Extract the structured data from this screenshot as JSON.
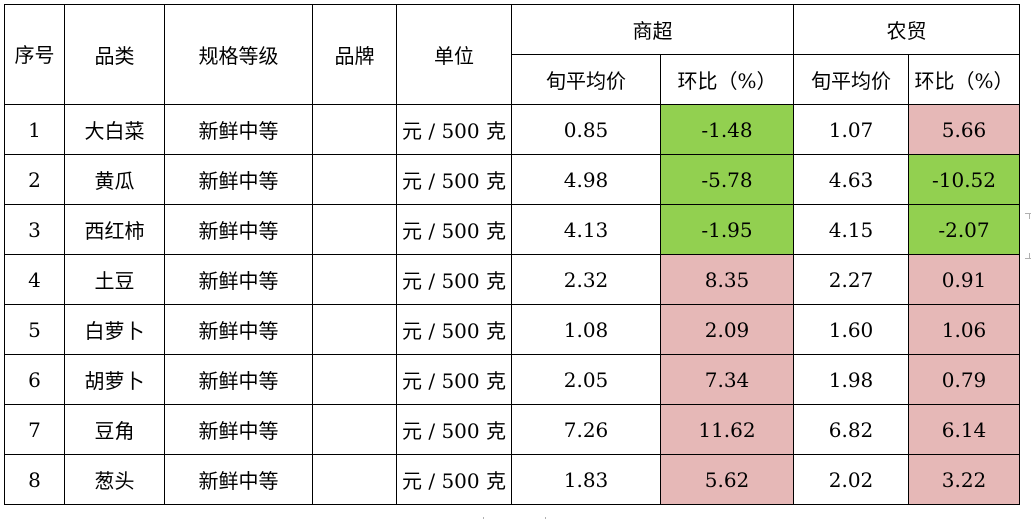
{
  "headers": {
    "seq": "序号",
    "category": "品类",
    "spec": "规格等级",
    "brand": "品牌",
    "unit": "单位",
    "supermarket": "商超",
    "farmers_market": "农贸",
    "avg_price": "旬平均价",
    "mom_change": "环比（%）"
  },
  "rows": [
    {
      "seq": "1",
      "category": "大白菜",
      "spec": "新鲜中等",
      "brand": "",
      "unit": "元 / 500 克",
      "sm_price": "0.85",
      "sm_change": "-1.48",
      "sm_color": "green",
      "fm_price": "1.07",
      "fm_change": "5.66",
      "fm_color": "pink"
    },
    {
      "seq": "2",
      "category": "黄瓜",
      "spec": "新鲜中等",
      "brand": "",
      "unit": "元 / 500 克",
      "sm_price": "4.98",
      "sm_change": "-5.78",
      "sm_color": "green",
      "fm_price": "4.63",
      "fm_change": "-10.52",
      "fm_color": "green"
    },
    {
      "seq": "3",
      "category": "西红柿",
      "spec": "新鲜中等",
      "brand": "",
      "unit": "元 / 500 克",
      "sm_price": "4.13",
      "sm_change": "-1.95",
      "sm_color": "green",
      "fm_price": "4.15",
      "fm_change": "-2.07",
      "fm_color": "green"
    },
    {
      "seq": "4",
      "category": "土豆",
      "spec": "新鲜中等",
      "brand": "",
      "unit": "元 / 500 克",
      "sm_price": "2.32",
      "sm_change": "8.35",
      "sm_color": "pink",
      "fm_price": "2.27",
      "fm_change": "0.91",
      "fm_color": "pink"
    },
    {
      "seq": "5",
      "category": "白萝卜",
      "spec": "新鲜中等",
      "brand": "",
      "unit": "元 / 500 克",
      "sm_price": "1.08",
      "sm_change": "2.09",
      "sm_color": "pink",
      "fm_price": "1.60",
      "fm_change": "1.06",
      "fm_color": "pink"
    },
    {
      "seq": "6",
      "category": "胡萝卜",
      "spec": "新鲜中等",
      "brand": "",
      "unit": "元 / 500 克",
      "sm_price": "2.05",
      "sm_change": "7.34",
      "sm_color": "pink",
      "fm_price": "1.98",
      "fm_change": "0.79",
      "fm_color": "pink"
    },
    {
      "seq": "7",
      "category": "豆角",
      "spec": "新鲜中等",
      "brand": "",
      "unit": "元 / 500 克",
      "sm_price": "7.26",
      "sm_change": "11.62",
      "sm_color": "pink",
      "fm_price": "6.82",
      "fm_change": "6.14",
      "fm_color": "pink"
    },
    {
      "seq": "8",
      "category": "葱头",
      "spec": "新鲜中等",
      "brand": "",
      "unit": "元 / 500 克",
      "sm_price": "1.83",
      "sm_change": "5.62",
      "sm_color": "pink",
      "fm_price": "2.02",
      "fm_change": "3.22",
      "fm_color": "pink"
    }
  ],
  "colors": {
    "green": "#92d050",
    "pink": "#e6b8b7"
  }
}
